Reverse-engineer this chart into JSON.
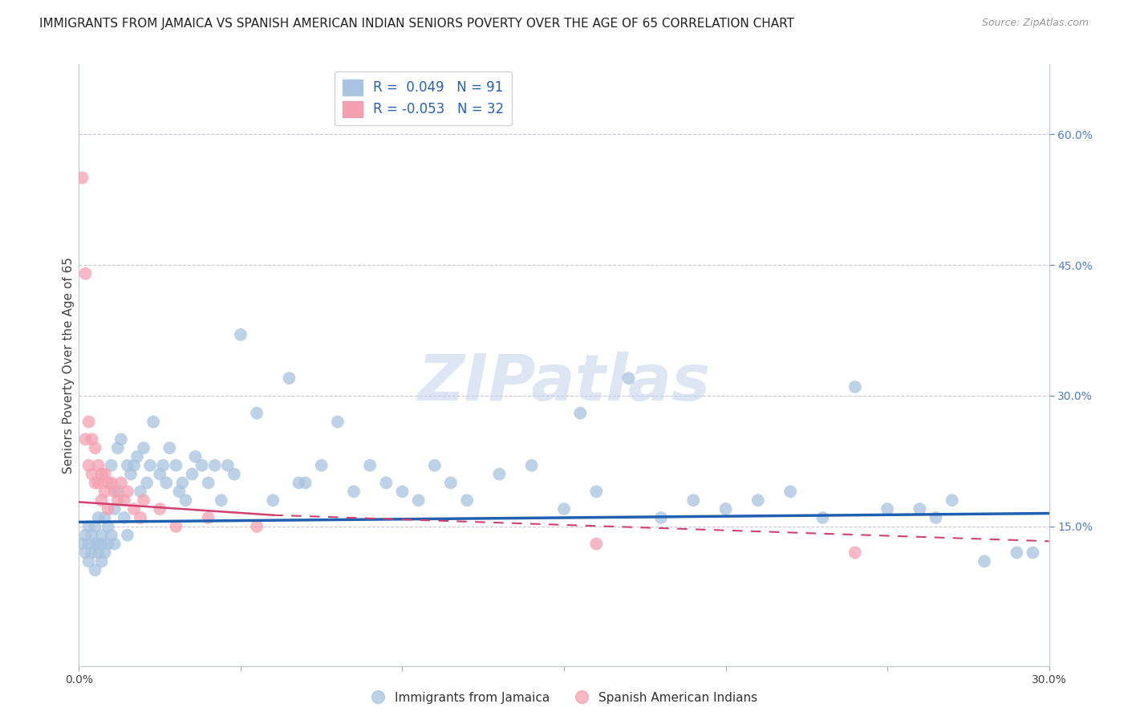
{
  "title": "IMMIGRANTS FROM JAMAICA VS SPANISH AMERICAN INDIAN SENIORS POVERTY OVER THE AGE OF 65 CORRELATION CHART",
  "source": "Source: ZipAtlas.com",
  "ylabel": "Seniors Poverty Over the Age of 65",
  "xlim": [
    0.0,
    0.3
  ],
  "ylim": [
    -0.01,
    0.68
  ],
  "right_yticks": [
    0.15,
    0.3,
    0.45,
    0.6
  ],
  "right_yticklabels": [
    "15.0%",
    "30.0%",
    "45.0%",
    "60.0%"
  ],
  "blue_R": 0.049,
  "blue_N": 91,
  "pink_R": -0.053,
  "pink_N": 32,
  "blue_color": "#a8c4e0",
  "pink_color": "#f4a0b0",
  "blue_line_color": "#2060b0",
  "pink_line_color": "#d04070",
  "blue_scatter_x": [
    0.001,
    0.002,
    0.002,
    0.003,
    0.003,
    0.003,
    0.004,
    0.004,
    0.005,
    0.005,
    0.005,
    0.006,
    0.006,
    0.006,
    0.007,
    0.007,
    0.007,
    0.008,
    0.008,
    0.009,
    0.009,
    0.01,
    0.01,
    0.011,
    0.011,
    0.012,
    0.012,
    0.013,
    0.014,
    0.015,
    0.015,
    0.016,
    0.017,
    0.018,
    0.019,
    0.02,
    0.021,
    0.022,
    0.023,
    0.025,
    0.026,
    0.027,
    0.028,
    0.03,
    0.031,
    0.032,
    0.033,
    0.035,
    0.036,
    0.038,
    0.04,
    0.042,
    0.044,
    0.046,
    0.048,
    0.05,
    0.055,
    0.06,
    0.065,
    0.068,
    0.07,
    0.075,
    0.08,
    0.085,
    0.09,
    0.095,
    0.1,
    0.105,
    0.11,
    0.115,
    0.12,
    0.13,
    0.14,
    0.15,
    0.155,
    0.16,
    0.17,
    0.18,
    0.19,
    0.2,
    0.21,
    0.22,
    0.23,
    0.24,
    0.25,
    0.26,
    0.265,
    0.27,
    0.28,
    0.29,
    0.295
  ],
  "blue_scatter_y": [
    0.13,
    0.14,
    0.12,
    0.15,
    0.13,
    0.11,
    0.14,
    0.12,
    0.13,
    0.15,
    0.1,
    0.13,
    0.16,
    0.12,
    0.14,
    0.11,
    0.13,
    0.16,
    0.12,
    0.13,
    0.15,
    0.14,
    0.22,
    0.17,
    0.13,
    0.24,
    0.19,
    0.25,
    0.16,
    0.22,
    0.14,
    0.21,
    0.22,
    0.23,
    0.19,
    0.24,
    0.2,
    0.22,
    0.27,
    0.21,
    0.22,
    0.2,
    0.24,
    0.22,
    0.19,
    0.2,
    0.18,
    0.21,
    0.23,
    0.22,
    0.2,
    0.22,
    0.18,
    0.22,
    0.21,
    0.37,
    0.28,
    0.18,
    0.32,
    0.2,
    0.2,
    0.22,
    0.27,
    0.19,
    0.22,
    0.2,
    0.19,
    0.18,
    0.22,
    0.2,
    0.18,
    0.21,
    0.22,
    0.17,
    0.28,
    0.19,
    0.32,
    0.16,
    0.18,
    0.17,
    0.18,
    0.19,
    0.16,
    0.31,
    0.17,
    0.17,
    0.16,
    0.18,
    0.11,
    0.12,
    0.12
  ],
  "pink_scatter_x": [
    0.001,
    0.002,
    0.002,
    0.003,
    0.003,
    0.004,
    0.004,
    0.005,
    0.005,
    0.006,
    0.006,
    0.007,
    0.007,
    0.008,
    0.008,
    0.009,
    0.009,
    0.01,
    0.011,
    0.012,
    0.013,
    0.014,
    0.015,
    0.017,
    0.019,
    0.02,
    0.025,
    0.03,
    0.04,
    0.055,
    0.16,
    0.24
  ],
  "pink_scatter_y": [
    0.55,
    0.44,
    0.25,
    0.27,
    0.22,
    0.25,
    0.21,
    0.24,
    0.2,
    0.22,
    0.2,
    0.21,
    0.18,
    0.21,
    0.19,
    0.2,
    0.17,
    0.2,
    0.19,
    0.18,
    0.2,
    0.18,
    0.19,
    0.17,
    0.16,
    0.18,
    0.17,
    0.15,
    0.16,
    0.15,
    0.13,
    0.12
  ],
  "watermark": "ZIPatlas",
  "background_color": "#ffffff",
  "grid_color": "#c8c8d8",
  "title_fontsize": 11,
  "axis_label_fontsize": 11,
  "tick_fontsize": 10
}
